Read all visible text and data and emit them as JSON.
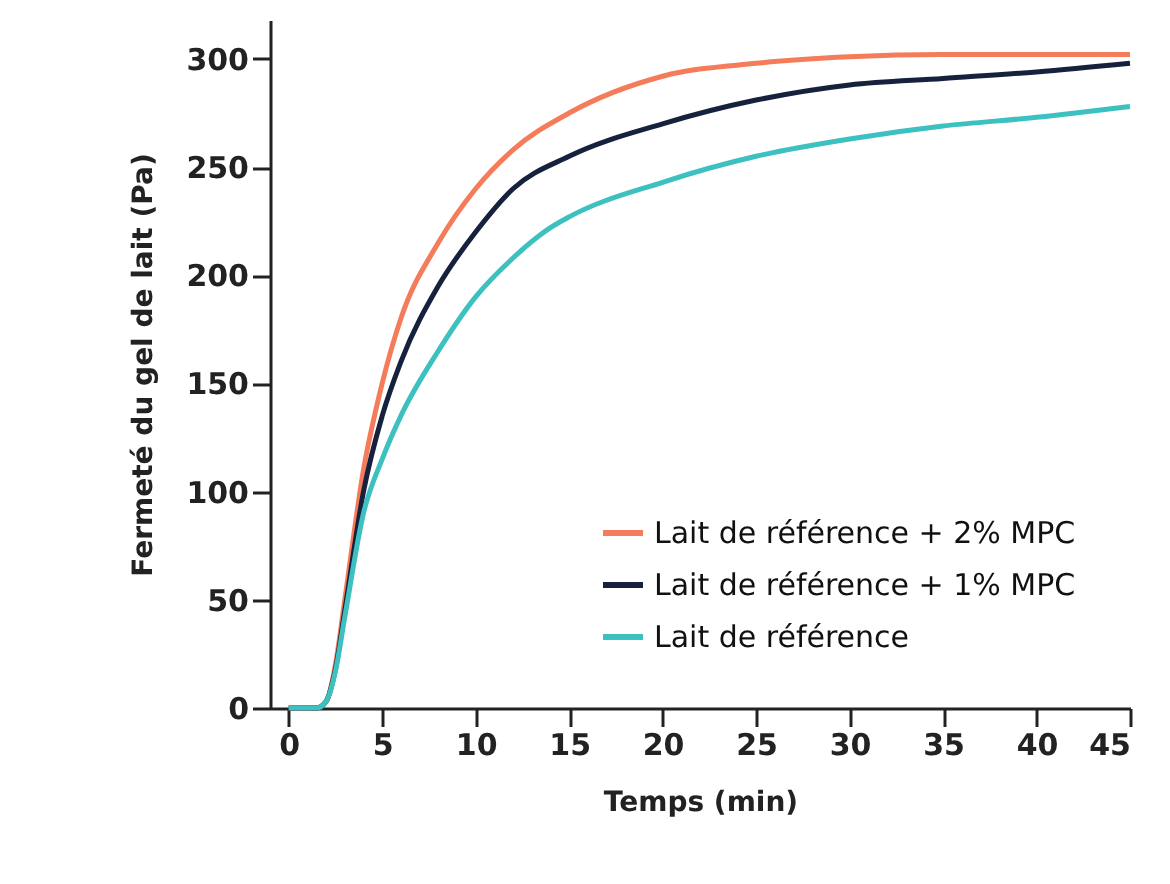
{
  "chart_data": {
    "type": "line",
    "xlabel": "Temps (min)",
    "ylabel": "Fermeté du gel de lait (Pa)",
    "xlim": [
      -1,
      45
    ],
    "xticks": [
      0,
      5,
      10,
      15,
      20,
      25,
      30,
      35,
      40,
      45
    ],
    "ylim": [
      0,
      318
    ],
    "yticks": [
      0,
      50,
      100,
      150,
      200,
      250,
      300
    ],
    "grid": false,
    "legend": "bottom right",
    "marker": "none",
    "line_style": "solid",
    "series": [
      {
        "name": "Lait de référence + 2% MPC",
        "color": "#f47c5a",
        "x": [
          0,
          1.5,
          2,
          2.5,
          3,
          4,
          5,
          6,
          8,
          10,
          12,
          15,
          20,
          25,
          30,
          35,
          40,
          45
        ],
        "values": [
          0,
          0,
          3,
          20,
          50,
          110,
          150,
          180,
          215,
          240,
          258,
          275,
          292,
          298,
          301,
          302,
          302,
          302
        ]
      },
      {
        "name": "Lait de référence + 1% MPC",
        "color": "#16213e",
        "x": [
          0,
          1.5,
          2,
          2.5,
          3,
          4,
          5,
          6,
          8,
          10,
          12,
          15,
          20,
          25,
          30,
          35,
          40,
          45
        ],
        "values": [
          0,
          0,
          3,
          18,
          45,
          100,
          135,
          160,
          195,
          220,
          240,
          255,
          270,
          281,
          288,
          291,
          294,
          298
        ]
      },
      {
        "name": "Lait de référence",
        "color": "#3cc1c0",
        "x": [
          0,
          1.5,
          2,
          2.5,
          3,
          4,
          5,
          6,
          8,
          10,
          12,
          14,
          15,
          20,
          25,
          30,
          35,
          40,
          45
        ],
        "values": [
          0,
          0,
          3,
          17,
          42,
          90,
          115,
          135,
          165,
          190,
          208,
          222,
          227,
          243,
          255,
          263,
          269,
          273,
          278
        ]
      }
    ]
  }
}
